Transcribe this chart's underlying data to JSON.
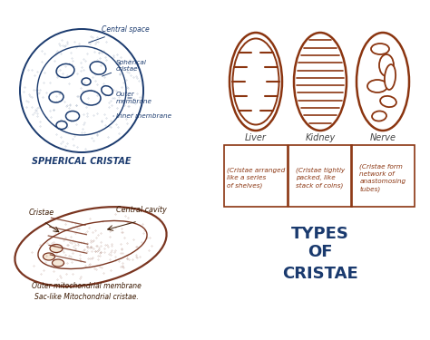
{
  "bg_color": "#ffffff",
  "blue_color": "#1a3a6e",
  "brown_color": "#8B3510",
  "sac_color": "#7a3520",
  "label_liver": "Liver",
  "label_kidney": "Kidney",
  "label_nerve": "Nerve",
  "text_liver": "(Cristae arranged\nlike a series\nof shelves)",
  "text_kidney": "(Cristae tightly\npacked, like\nstack of coins)",
  "text_nerve": "(Cristae form\nnetwork of\nanastomosing\ntubes)",
  "title_line1": "TYPES",
  "title_line2": "OF",
  "title_line3": "CRISTAE",
  "label_spherical": "SPHERICAL CRISTAE",
  "label_sac": "Sac-like Mitochondrial cristae.",
  "label_outer_mito": "Outer mitochondrial membrane",
  "label_cristae_sac": "Cristae",
  "label_central_cavity": "Central cavity",
  "label_central_space": "Central space",
  "label_spherical_cristae": "Spherical\ncristae",
  "label_outer_membrane": "Outer\nmembrane",
  "label_inner_membrane": "Inner membrane"
}
